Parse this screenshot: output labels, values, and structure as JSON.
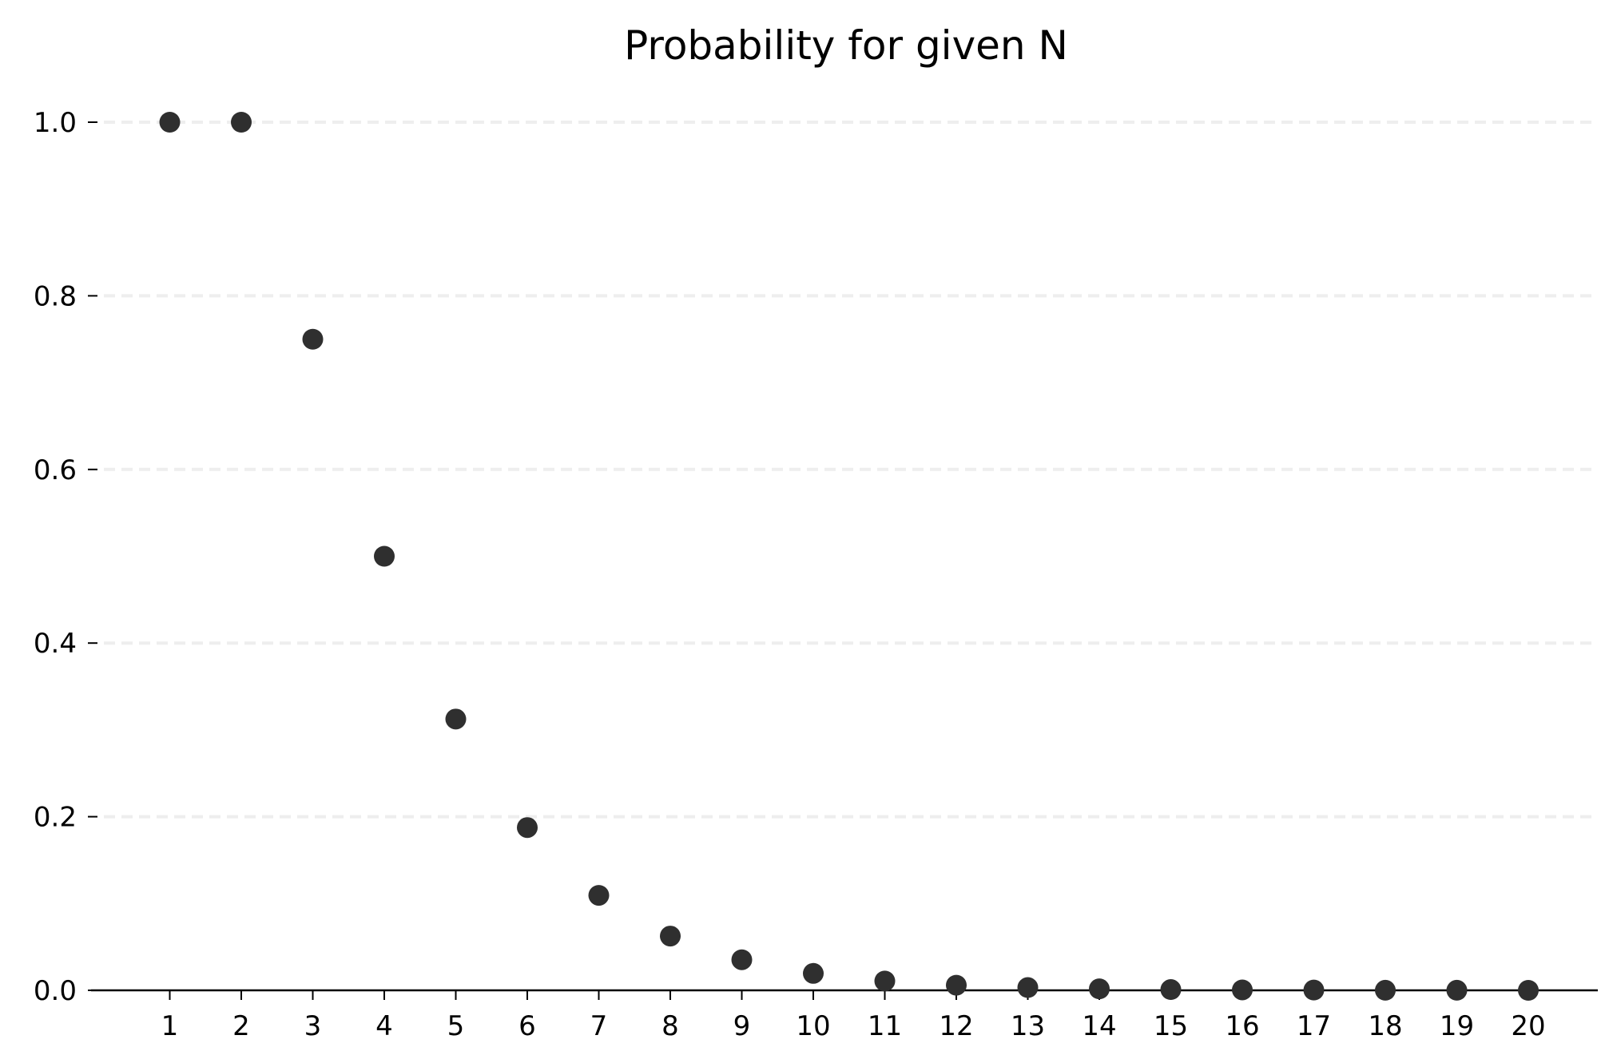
{
  "chart_data": {
    "type": "scatter",
    "title": "Probability for given N",
    "xlabel": "",
    "ylabel": "",
    "x": [
      1,
      2,
      3,
      4,
      5,
      6,
      7,
      8,
      9,
      10,
      11,
      12,
      13,
      14,
      15,
      16,
      17,
      18,
      19,
      20
    ],
    "y": [
      1.0,
      1.0,
      0.75,
      0.5,
      0.3125,
      0.1875,
      0.1094,
      0.0625,
      0.0352,
      0.0195,
      0.0107,
      0.0059,
      0.0032,
      0.0017,
      0.0009,
      0.0005,
      0.0003,
      0.0001,
      0.0001,
      0.0
    ],
    "xticks": [
      "1",
      "2",
      "3",
      "4",
      "5",
      "6",
      "7",
      "8",
      "9",
      "10",
      "11",
      "12",
      "13",
      "14",
      "15",
      "16",
      "17",
      "18",
      "19",
      "20"
    ],
    "yticks": [
      "0.0",
      "0.2",
      "0.4",
      "0.6",
      "0.8",
      "1.0"
    ],
    "xlim": [
      0,
      21
    ],
    "ylim": [
      0,
      1.0
    ],
    "grid": "horizontal-dashed",
    "colors": {
      "marker": "#2f2f2f",
      "grid": "#eeeeee",
      "axis": "#000000",
      "text": "#000000"
    }
  }
}
